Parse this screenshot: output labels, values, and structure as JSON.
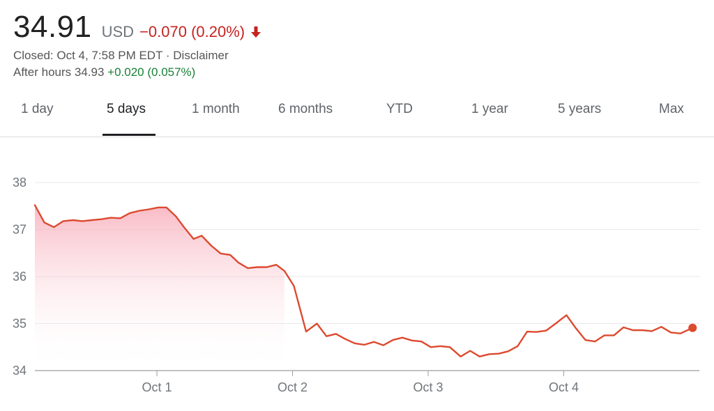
{
  "quote": {
    "price": "34.91",
    "currency": "USD",
    "change": "−0.070 (0.20%)",
    "direction_icon": "down-arrow-icon",
    "closed_text": "Closed: Oct 4, 7:58 PM EDT · Disclaimer",
    "after_hours_label": "After hours 34.93",
    "after_hours_change": "+0.020 (0.057%)"
  },
  "tabs": [
    {
      "label": "1 day"
    },
    {
      "label": "5 days",
      "active": true
    },
    {
      "label": "1 month"
    },
    {
      "label": "6 months"
    },
    {
      "label": "YTD"
    },
    {
      "label": "1 year"
    },
    {
      "label": "5 years"
    },
    {
      "label": "Max"
    }
  ],
  "colors": {
    "line": "#dc4a2f",
    "fill": "#f7c1c8",
    "negative": "#c5221f",
    "positive": "#188038",
    "grid": "#e8e8e8"
  },
  "chart_data": {
    "type": "area",
    "title": "",
    "xlabel": "",
    "ylabel": "",
    "ylim": [
      34,
      38
    ],
    "yticks": [
      "34",
      "35",
      "36",
      "37",
      "38"
    ],
    "xticks": [
      {
        "label": "Oct 1",
        "day": 1
      },
      {
        "label": "Oct 2",
        "day": 2
      },
      {
        "label": "Oct 3",
        "day": 3
      },
      {
        "label": "Oct 4",
        "day": 4
      }
    ],
    "xlim": [
      0.1,
      5.0
    ],
    "grid": true,
    "previous_close_area_threshold_day": 2.0,
    "series": [
      {
        "values": [
          [
            0.1,
            37.52
          ],
          [
            0.17,
            37.15
          ],
          [
            0.24,
            37.05
          ],
          [
            0.31,
            37.18
          ],
          [
            0.38,
            37.2
          ],
          [
            0.45,
            37.18
          ],
          [
            0.52,
            37.2
          ],
          [
            0.59,
            37.22
          ],
          [
            0.66,
            37.25
          ],
          [
            0.73,
            37.24
          ],
          [
            0.8,
            37.35
          ],
          [
            0.87,
            37.4
          ],
          [
            0.94,
            37.43
          ],
          [
            1.01,
            37.47
          ],
          [
            1.07,
            37.47
          ],
          [
            1.14,
            37.28
          ],
          [
            1.2,
            37.05
          ],
          [
            1.27,
            36.8
          ],
          [
            1.33,
            36.87
          ],
          [
            1.4,
            36.66
          ],
          [
            1.47,
            36.49
          ],
          [
            1.54,
            36.46
          ],
          [
            1.6,
            36.3
          ],
          [
            1.67,
            36.18
          ],
          [
            1.74,
            36.2
          ],
          [
            1.81,
            36.2
          ],
          [
            1.88,
            36.25
          ],
          [
            1.94,
            36.12
          ],
          [
            2.01,
            35.8
          ],
          [
            2.1,
            34.83
          ],
          [
            2.18,
            35.0
          ],
          [
            2.25,
            34.73
          ],
          [
            2.32,
            34.78
          ],
          [
            2.39,
            34.67
          ],
          [
            2.46,
            34.58
          ],
          [
            2.53,
            34.55
          ],
          [
            2.6,
            34.61
          ],
          [
            2.67,
            34.54
          ],
          [
            2.74,
            34.65
          ],
          [
            2.81,
            34.7
          ],
          [
            2.88,
            34.64
          ],
          [
            2.95,
            34.62
          ],
          [
            3.02,
            34.5
          ],
          [
            3.09,
            34.52
          ],
          [
            3.16,
            34.5
          ],
          [
            3.24,
            34.3
          ],
          [
            3.31,
            34.42
          ],
          [
            3.38,
            34.3
          ],
          [
            3.45,
            34.35
          ],
          [
            3.52,
            34.36
          ],
          [
            3.59,
            34.41
          ],
          [
            3.66,
            34.52
          ],
          [
            3.73,
            34.83
          ],
          [
            3.8,
            34.82
          ],
          [
            3.87,
            34.85
          ],
          [
            3.94,
            35.0
          ],
          [
            4.02,
            35.18
          ],
          [
            4.09,
            34.9
          ],
          [
            4.16,
            34.65
          ],
          [
            4.23,
            34.62
          ],
          [
            4.3,
            34.75
          ],
          [
            4.37,
            34.75
          ],
          [
            4.44,
            34.92
          ],
          [
            4.51,
            34.86
          ],
          [
            4.58,
            34.86
          ],
          [
            4.65,
            34.84
          ],
          [
            4.72,
            34.93
          ],
          [
            4.79,
            34.81
          ],
          [
            4.86,
            34.79
          ],
          [
            4.95,
            34.91
          ]
        ]
      }
    ]
  }
}
